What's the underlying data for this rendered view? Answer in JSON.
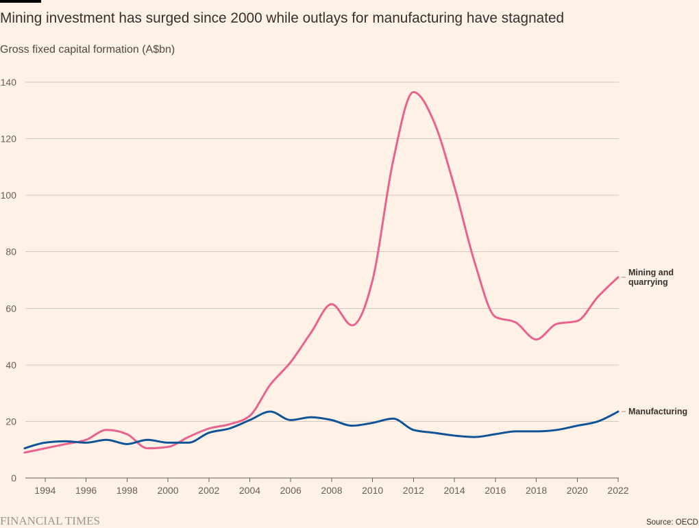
{
  "colors": {
    "background": "#fff1e5",
    "text": "#33302e",
    "subtitle": "#4d4845",
    "tick_text": "#66605c",
    "gridline": "#d4c7bb",
    "baseline": "#66605c",
    "logo": "#9d968f",
    "top_bar": "#000000"
  },
  "footer": {
    "brand": "FINANCIAL TIMES",
    "source": "Source: OECD"
  },
  "chart_data": {
    "type": "line",
    "title": "Mining investment has surged since 2000 while outlays for manufacturing have stagnated",
    "subtitle": "Gross fixed capital formation (A$bn)",
    "x": [
      1993,
      1994,
      1995,
      1996,
      1997,
      1998,
      1999,
      2000,
      2001,
      2002,
      2003,
      2004,
      2005,
      2006,
      2007,
      2008,
      2009,
      2010,
      2011,
      2012,
      2013,
      2014,
      2015,
      2016,
      2017,
      2018,
      2019,
      2020,
      2021,
      2022
    ],
    "xticks": [
      1994,
      1996,
      1998,
      2000,
      2002,
      2004,
      2006,
      2008,
      2010,
      2012,
      2014,
      2016,
      2018,
      2020,
      2022
    ],
    "xlim": [
      1993,
      2022
    ],
    "ylim": [
      0,
      140
    ],
    "yticks": [
      0,
      20,
      40,
      60,
      80,
      100,
      120,
      140
    ],
    "grid": true,
    "legend": "right",
    "series": [
      {
        "name": "Mining and quarrying",
        "color": "#e9628f",
        "values": [
          9,
          10.5,
          12,
          13.5,
          17,
          15.5,
          10.5,
          11,
          14.5,
          17.5,
          19,
          22,
          33,
          41,
          51.5,
          61.5,
          54,
          70,
          112,
          136.5,
          126,
          103,
          76,
          57,
          55,
          49,
          54.5,
          55.5,
          64,
          71
        ]
      },
      {
        "name": "Manufacturing",
        "color": "#0f5499",
        "values": [
          10.5,
          12.5,
          13,
          12.5,
          13.5,
          12,
          13.5,
          12.5,
          12.5,
          16,
          17.5,
          20.5,
          23.5,
          20.5,
          21.5,
          20.5,
          18.5,
          19.5,
          21,
          17,
          16,
          15,
          14.5,
          15.5,
          16.5,
          16.5,
          17,
          18.5,
          20,
          23.5
        ]
      }
    ]
  }
}
